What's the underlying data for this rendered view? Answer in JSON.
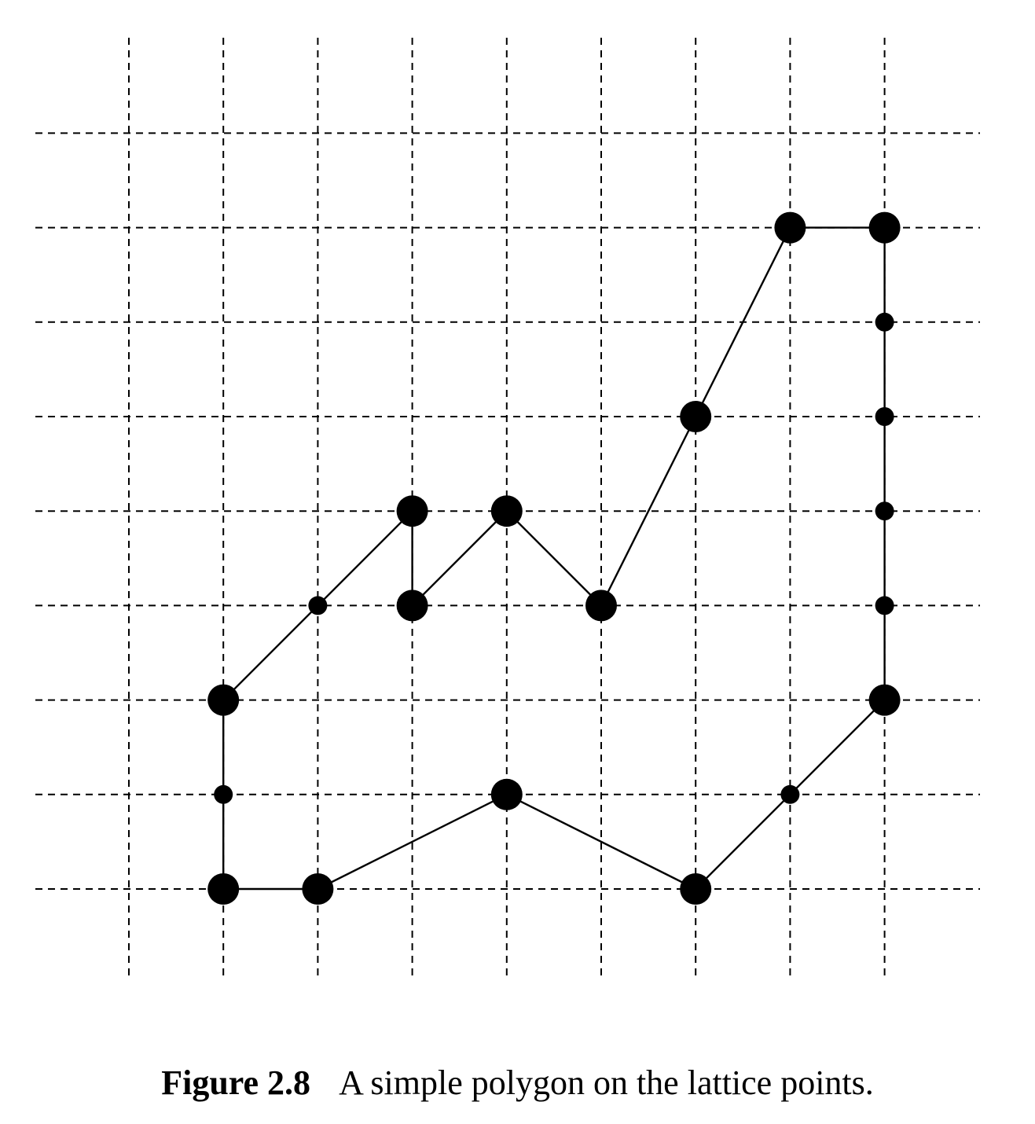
{
  "figure": {
    "lattice": {
      "columns": [
        0,
        1,
        2,
        3,
        4,
        5,
        6,
        7,
        8
      ],
      "rows": [
        0,
        1,
        2,
        3,
        4,
        5,
        6,
        7,
        8
      ]
    },
    "polygon_vertices": [
      [
        7,
        7
      ],
      [
        8,
        7
      ],
      [
        8,
        2
      ],
      [
        6,
        0
      ],
      [
        4,
        1
      ],
      [
        2,
        0
      ],
      [
        1,
        0
      ],
      [
        1,
        2
      ],
      [
        3,
        4
      ],
      [
        3,
        3
      ],
      [
        4,
        4
      ],
      [
        5,
        3
      ],
      [
        6,
        5
      ]
    ],
    "boundary_points": [
      [
        8,
        6
      ],
      [
        8,
        5
      ],
      [
        8,
        4
      ],
      [
        8,
        3
      ],
      [
        7,
        1
      ],
      [
        1,
        1
      ],
      [
        2,
        3
      ],
      [
        6,
        5
      ]
    ]
  },
  "caption": {
    "label": "Figure 2.8",
    "text": "A simple polygon on the lattice points."
  }
}
